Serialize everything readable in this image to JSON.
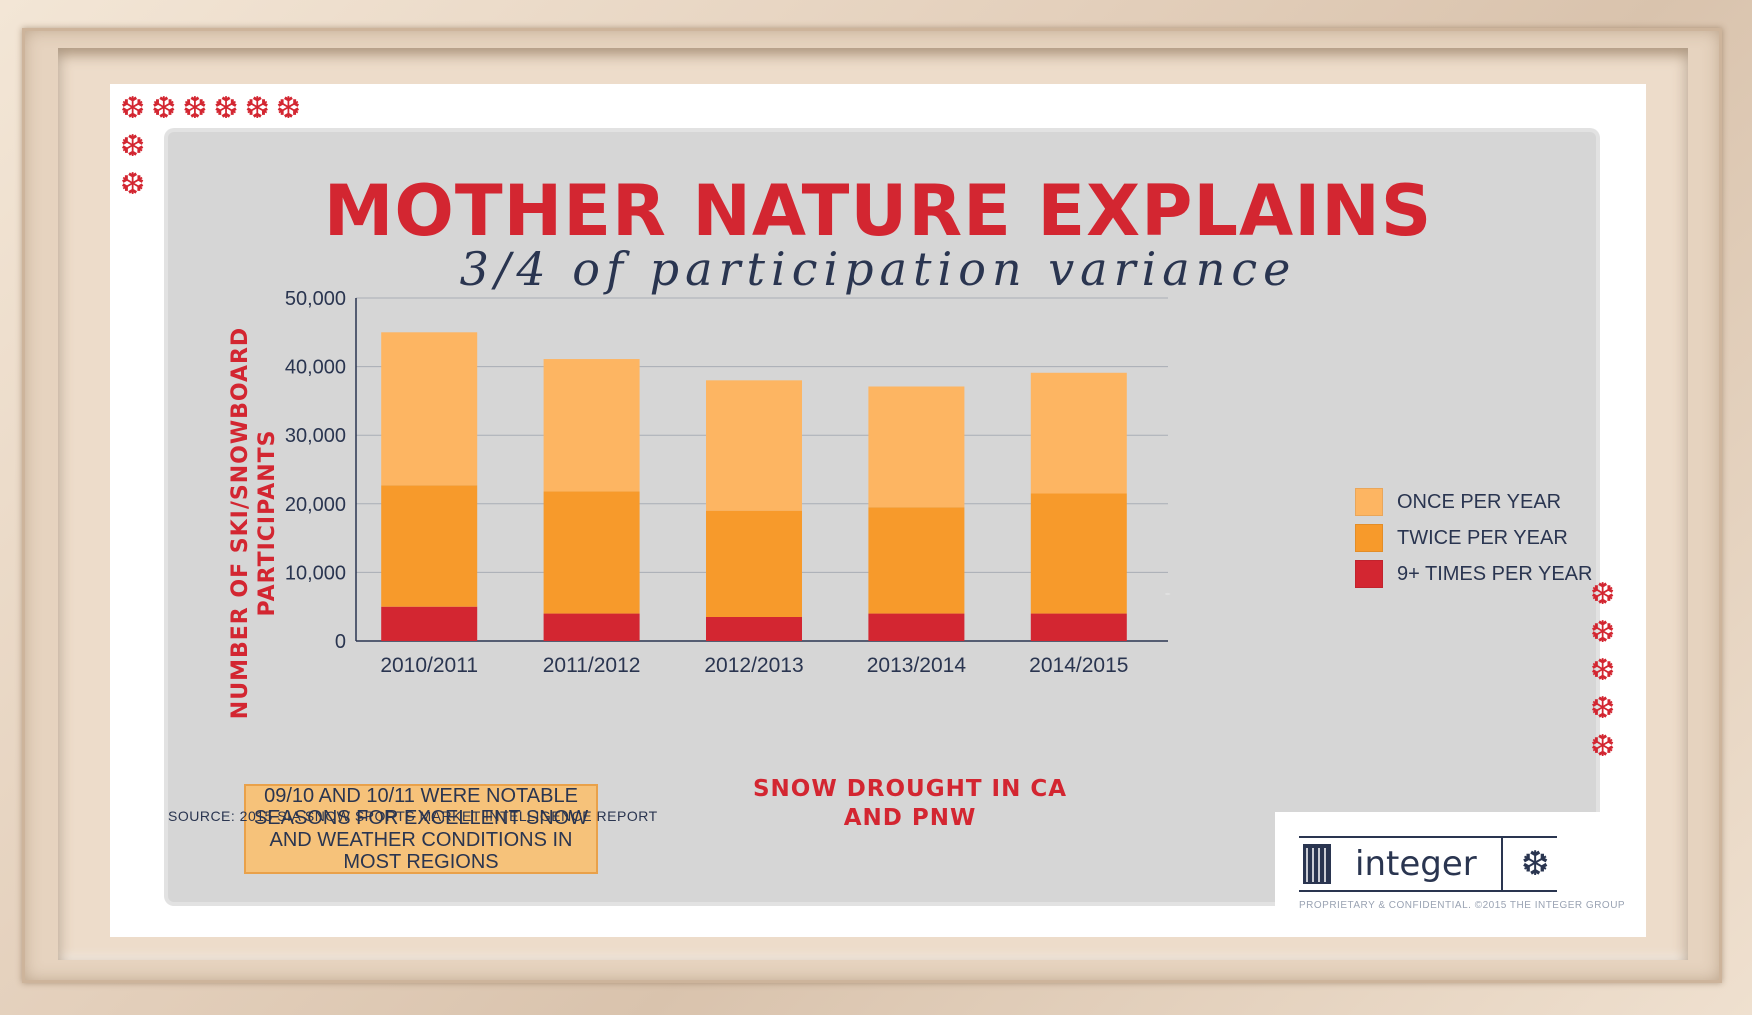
{
  "title": "MOTHER NATURE EXPLAINS",
  "subtitle": "3/4 of participation variance",
  "note": "09/10 AND 10/11 WERE NOTABLE SEASONS FOR EXCELLENT SNOW AND WEATHER CONDITIONS IN MOST REGIONS",
  "source": "SOURCE: 2015 SIA SNOW SPORTS MARKET INTELLIGENCE REPORT",
  "logo": {
    "name": "integer",
    "copyright": "PROPRIETARY & CONFIDENTIAL. ©2015 THE INTEGER GROUP"
  },
  "decor": {
    "flake_char": "❆"
  },
  "colors": {
    "title": "#d32631",
    "text": "#2a3550",
    "once": "#fdb562",
    "twice": "#f79a2b",
    "nine_plus": "#d32631"
  },
  "chart_data": {
    "type": "bar",
    "stacked": true,
    "ylabel": "NUMBER OF SKI/SNOWBOARD PARTICIPANTS",
    "xlabel": "SNOW DROUGHT IN CA AND PNW",
    "categories": [
      "2010/2011",
      "2011/2012",
      "2012/2013",
      "2013/2014",
      "2014/2015"
    ],
    "ylim": [
      0,
      50000
    ],
    "yticks": [
      "0",
      "10,000",
      "20,000",
      "30,000",
      "40,000",
      "50,000"
    ],
    "ytick_values": [
      0,
      10000,
      20000,
      30000,
      40000,
      50000
    ],
    "grid": true,
    "legend_position": "right",
    "series": [
      {
        "name": "9+ TIMES PER YEAR",
        "color": "#d32631",
        "values": [
          5000,
          4000,
          3500,
          4000,
          4000
        ]
      },
      {
        "name": "TWICE PER YEAR",
        "color": "#f79a2b",
        "values": [
          17700,
          17800,
          15500,
          15500,
          17500
        ]
      },
      {
        "name": "ONCE PER YEAR",
        "color": "#fdb562",
        "values": [
          22300,
          19300,
          19000,
          17600,
          17600
        ]
      }
    ],
    "legend_order": [
      2,
      1,
      0
    ]
  }
}
